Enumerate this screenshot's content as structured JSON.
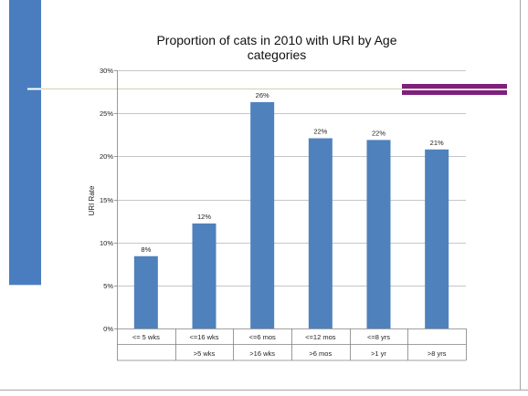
{
  "colors": {
    "accent_blue": "#4a7dbf",
    "bar_color": "#4f81bd",
    "purple_bars": "#7f1f7f",
    "divider_line": "#d9d5b8",
    "frame_border": "#a6a6a6"
  },
  "chart_data": {
    "type": "bar",
    "title": "Proportion of cats in 2010 with URI by Age categories",
    "title_lines": [
      "Proportion of cats in 2010 with URI by Age",
      "categories"
    ],
    "xlabel": "",
    "ylabel": "URI Rate",
    "ylim": [
      0,
      30
    ],
    "yticks": [
      "0%",
      "5%",
      "10%",
      "15%",
      "20%",
      "25%",
      "30%"
    ],
    "grid": true,
    "legend": "none",
    "categories": [
      {
        "line1": "<= 5 wks",
        "line2": ""
      },
      {
        "line1": "<=16 wks",
        "line2": ">5 wks"
      },
      {
        "line1": "<=6 mos",
        "line2": ">16 wks"
      },
      {
        "line1": "<=12 mos",
        "line2": ">6 mos"
      },
      {
        "line1": "<=8 yrs",
        "line2": ">1 yr"
      },
      {
        "line1": "",
        "line2": ">8 yrs"
      }
    ],
    "values": [
      8.4,
      12.2,
      26.3,
      22.1,
      21.9,
      20.8
    ],
    "data_labels": [
      "8%",
      "12%",
      "26%",
      "22%",
      "22%",
      "21%"
    ]
  }
}
